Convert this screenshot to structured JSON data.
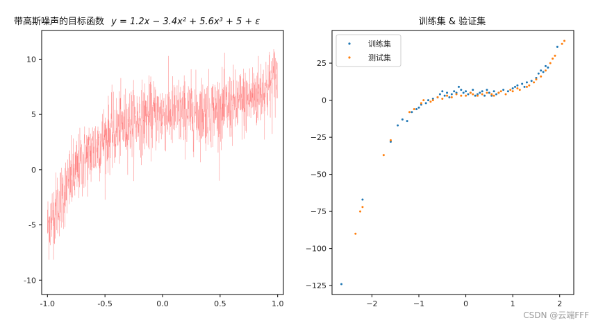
{
  "chart_data": [
    {
      "type": "line",
      "title_prefix": "带高斯噪声的目标函数",
      "title_formula": "y = 1.2x − 3.4x² + 5.6x³ + 5 + ε",
      "series_color": "#ff3333",
      "xlim": [
        -1.05,
        1.05
      ],
      "ylim": [
        -11.3,
        12.6
      ],
      "xticks": [
        -1.0,
        -0.5,
        0.0,
        0.5,
        1.0
      ],
      "xtick_labels": [
        "-1.0",
        "-0.5",
        "0.0",
        "0.5",
        "1.0"
      ],
      "yticks": [
        -10,
        -5,
        0,
        5,
        10
      ],
      "ytick_labels": [
        "-10",
        "-5",
        "0",
        "5",
        "10"
      ],
      "function_coefficients": {
        "x": 1.2,
        "x2": -3.4,
        "x3": 5.6,
        "const": 5
      },
      "noise_sigma": 1.6,
      "x_range": [
        -1.0,
        1.0
      ],
      "grid": false
    },
    {
      "type": "scatter",
      "title": "训练集 & 验证集",
      "xlim": [
        -2.85,
        2.3
      ],
      "ylim": [
        -131,
        47
      ],
      "xticks": [
        -2,
        -1,
        0,
        1,
        2
      ],
      "xtick_labels": [
        "−2",
        "−1",
        "0",
        "1",
        "2"
      ],
      "yticks": [
        -125,
        -100,
        -75,
        -50,
        -25,
        0,
        25
      ],
      "ytick_labels": [
        "−125",
        "−100",
        "−75",
        "−50",
        "−25",
        "0",
        "25"
      ],
      "legend_position": "top-left",
      "grid": false,
      "series": [
        {
          "name": "训练集",
          "color": "#1f77b4",
          "points": [
            [
              -2.65,
              -124
            ],
            [
              -2.2,
              -67
            ],
            [
              -1.6,
              -28
            ],
            [
              -1.45,
              -17
            ],
            [
              -1.35,
              -13
            ],
            [
              -1.25,
              -14
            ],
            [
              -1.15,
              -8
            ],
            [
              -1.05,
              -6
            ],
            [
              -1.0,
              -5
            ],
            [
              -0.95,
              -3
            ],
            [
              -0.85,
              -2
            ],
            [
              -0.8,
              0
            ],
            [
              -0.7,
              1
            ],
            [
              -0.6,
              2
            ],
            [
              -0.55,
              4
            ],
            [
              -0.5,
              6
            ],
            [
              -0.45,
              3
            ],
            [
              -0.4,
              5
            ],
            [
              -0.35,
              2
            ],
            [
              -0.3,
              4
            ],
            [
              -0.25,
              6
            ],
            [
              -0.2,
              5
            ],
            [
              -0.15,
              9
            ],
            [
              -0.1,
              7
            ],
            [
              -0.05,
              5
            ],
            [
              0.0,
              6
            ],
            [
              0.05,
              4
            ],
            [
              0.1,
              5
            ],
            [
              0.15,
              7
            ],
            [
              0.2,
              3
            ],
            [
              0.25,
              4
            ],
            [
              0.3,
              5
            ],
            [
              0.35,
              6
            ],
            [
              0.4,
              3
            ],
            [
              0.45,
              7
            ],
            [
              0.5,
              5
            ],
            [
              0.55,
              3
            ],
            [
              0.6,
              6
            ],
            [
              0.65,
              4
            ],
            [
              0.7,
              5
            ],
            [
              0.8,
              7
            ],
            [
              0.9,
              6
            ],
            [
              1.0,
              8
            ],
            [
              1.05,
              9
            ],
            [
              1.1,
              10
            ],
            [
              1.2,
              11
            ],
            [
              1.25,
              9
            ],
            [
              1.3,
              12
            ],
            [
              1.4,
              13
            ],
            [
              1.5,
              15
            ],
            [
              1.55,
              18
            ],
            [
              1.6,
              20
            ],
            [
              1.65,
              19
            ],
            [
              1.7,
              23
            ],
            [
              1.75,
              22
            ],
            [
              1.95,
              36
            ]
          ]
        },
        {
          "name": "测试集",
          "color": "#ff7f0e",
          "points": [
            [
              -2.35,
              -90
            ],
            [
              -2.25,
              -75
            ],
            [
              -2.2,
              -72
            ],
            [
              -1.75,
              -37
            ],
            [
              -1.6,
              -27
            ],
            [
              -1.2,
              -8
            ],
            [
              -1.1,
              -6
            ],
            [
              -0.95,
              -2
            ],
            [
              -0.9,
              0
            ],
            [
              -0.75,
              -1
            ],
            [
              -0.7,
              0
            ],
            [
              -0.6,
              2
            ],
            [
              -0.5,
              1
            ],
            [
              -0.4,
              3
            ],
            [
              -0.3,
              2
            ],
            [
              -0.2,
              4
            ],
            [
              -0.1,
              3
            ],
            [
              0.0,
              3
            ],
            [
              0.1,
              5
            ],
            [
              0.15,
              4
            ],
            [
              0.25,
              3
            ],
            [
              0.35,
              4
            ],
            [
              0.45,
              5
            ],
            [
              0.55,
              4
            ],
            [
              0.6,
              3
            ],
            [
              0.7,
              5
            ],
            [
              0.75,
              6
            ],
            [
              0.85,
              4
            ],
            [
              0.95,
              7
            ],
            [
              1.0,
              6
            ],
            [
              1.1,
              8
            ],
            [
              1.15,
              7
            ],
            [
              1.3,
              9
            ],
            [
              1.35,
              10
            ],
            [
              1.45,
              12
            ],
            [
              1.5,
              14
            ],
            [
              1.6,
              16
            ],
            [
              1.7,
              20
            ],
            [
              1.8,
              25
            ],
            [
              1.85,
              28
            ],
            [
              1.9,
              30
            ],
            [
              2.05,
              38
            ],
            [
              2.1,
              40
            ]
          ]
        }
      ]
    }
  ],
  "watermark": "CSDN @云端FFF"
}
